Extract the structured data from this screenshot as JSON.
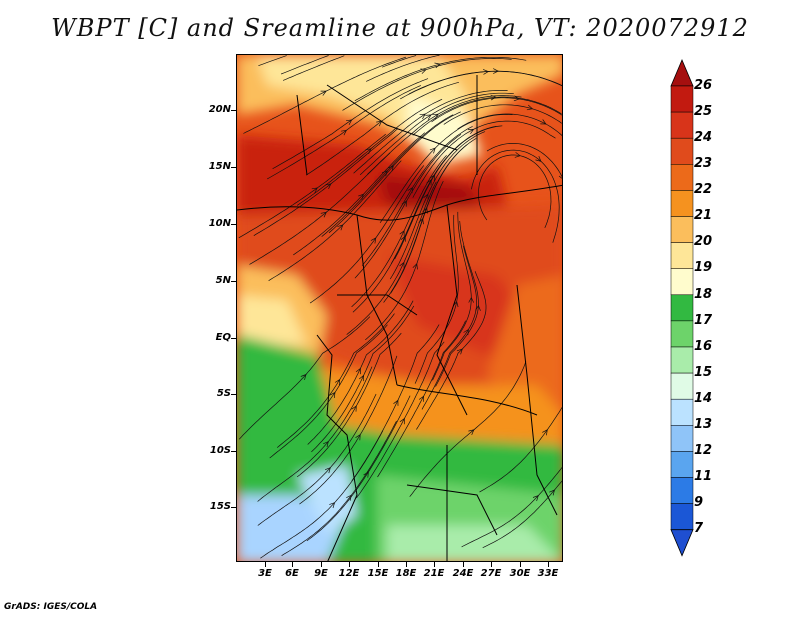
{
  "title": "WBPT [C] and Sreamline at 900hPa, VT: 2020072912",
  "footer": "GrADS: IGES/COLA",
  "map": {
    "lat_labels": [
      "20N",
      "15N",
      "10N",
      "5N",
      "EQ",
      "5S",
      "10S",
      "15S"
    ],
    "lon_labels": [
      "3E",
      "6E",
      "9E",
      "12E",
      "15E",
      "18E",
      "21E",
      "24E",
      "27E",
      "30E",
      "33E"
    ],
    "extent": {
      "lon_min": 0.5,
      "lon_max": 35,
      "lat_min": -20.5,
      "lat_max": 25
    }
  },
  "legend": {
    "labels": [
      "26",
      "25",
      "24",
      "23",
      "22",
      "21",
      "20",
      "19",
      "18",
      "17",
      "16",
      "15",
      "14",
      "13",
      "12",
      "11",
      "9",
      "7"
    ],
    "colors": [
      "#a50f0f",
      "#c21a10",
      "#d8341a",
      "#e04b1c",
      "#ec6a1a",
      "#f5921f",
      "#fbbe5c",
      "#fee698",
      "#fffccd",
      "#32b941",
      "#6dd36a",
      "#a9ecaa",
      "#e0fbe6",
      "#bbe2ff",
      "#8fc4f8",
      "#5aa5ef",
      "#2c7be6",
      "#1b57d6",
      "#1f4fd1"
    ]
  },
  "colors": {
    "hot": "#c9230f",
    "warm": "#e7531b",
    "orange": "#f5921f",
    "yellow": "#fbbe5c",
    "pale": "#fee698",
    "green": "#5ccf55",
    "lightgreen": "#a9ecaa",
    "lightblue": "#a9d4ff"
  }
}
